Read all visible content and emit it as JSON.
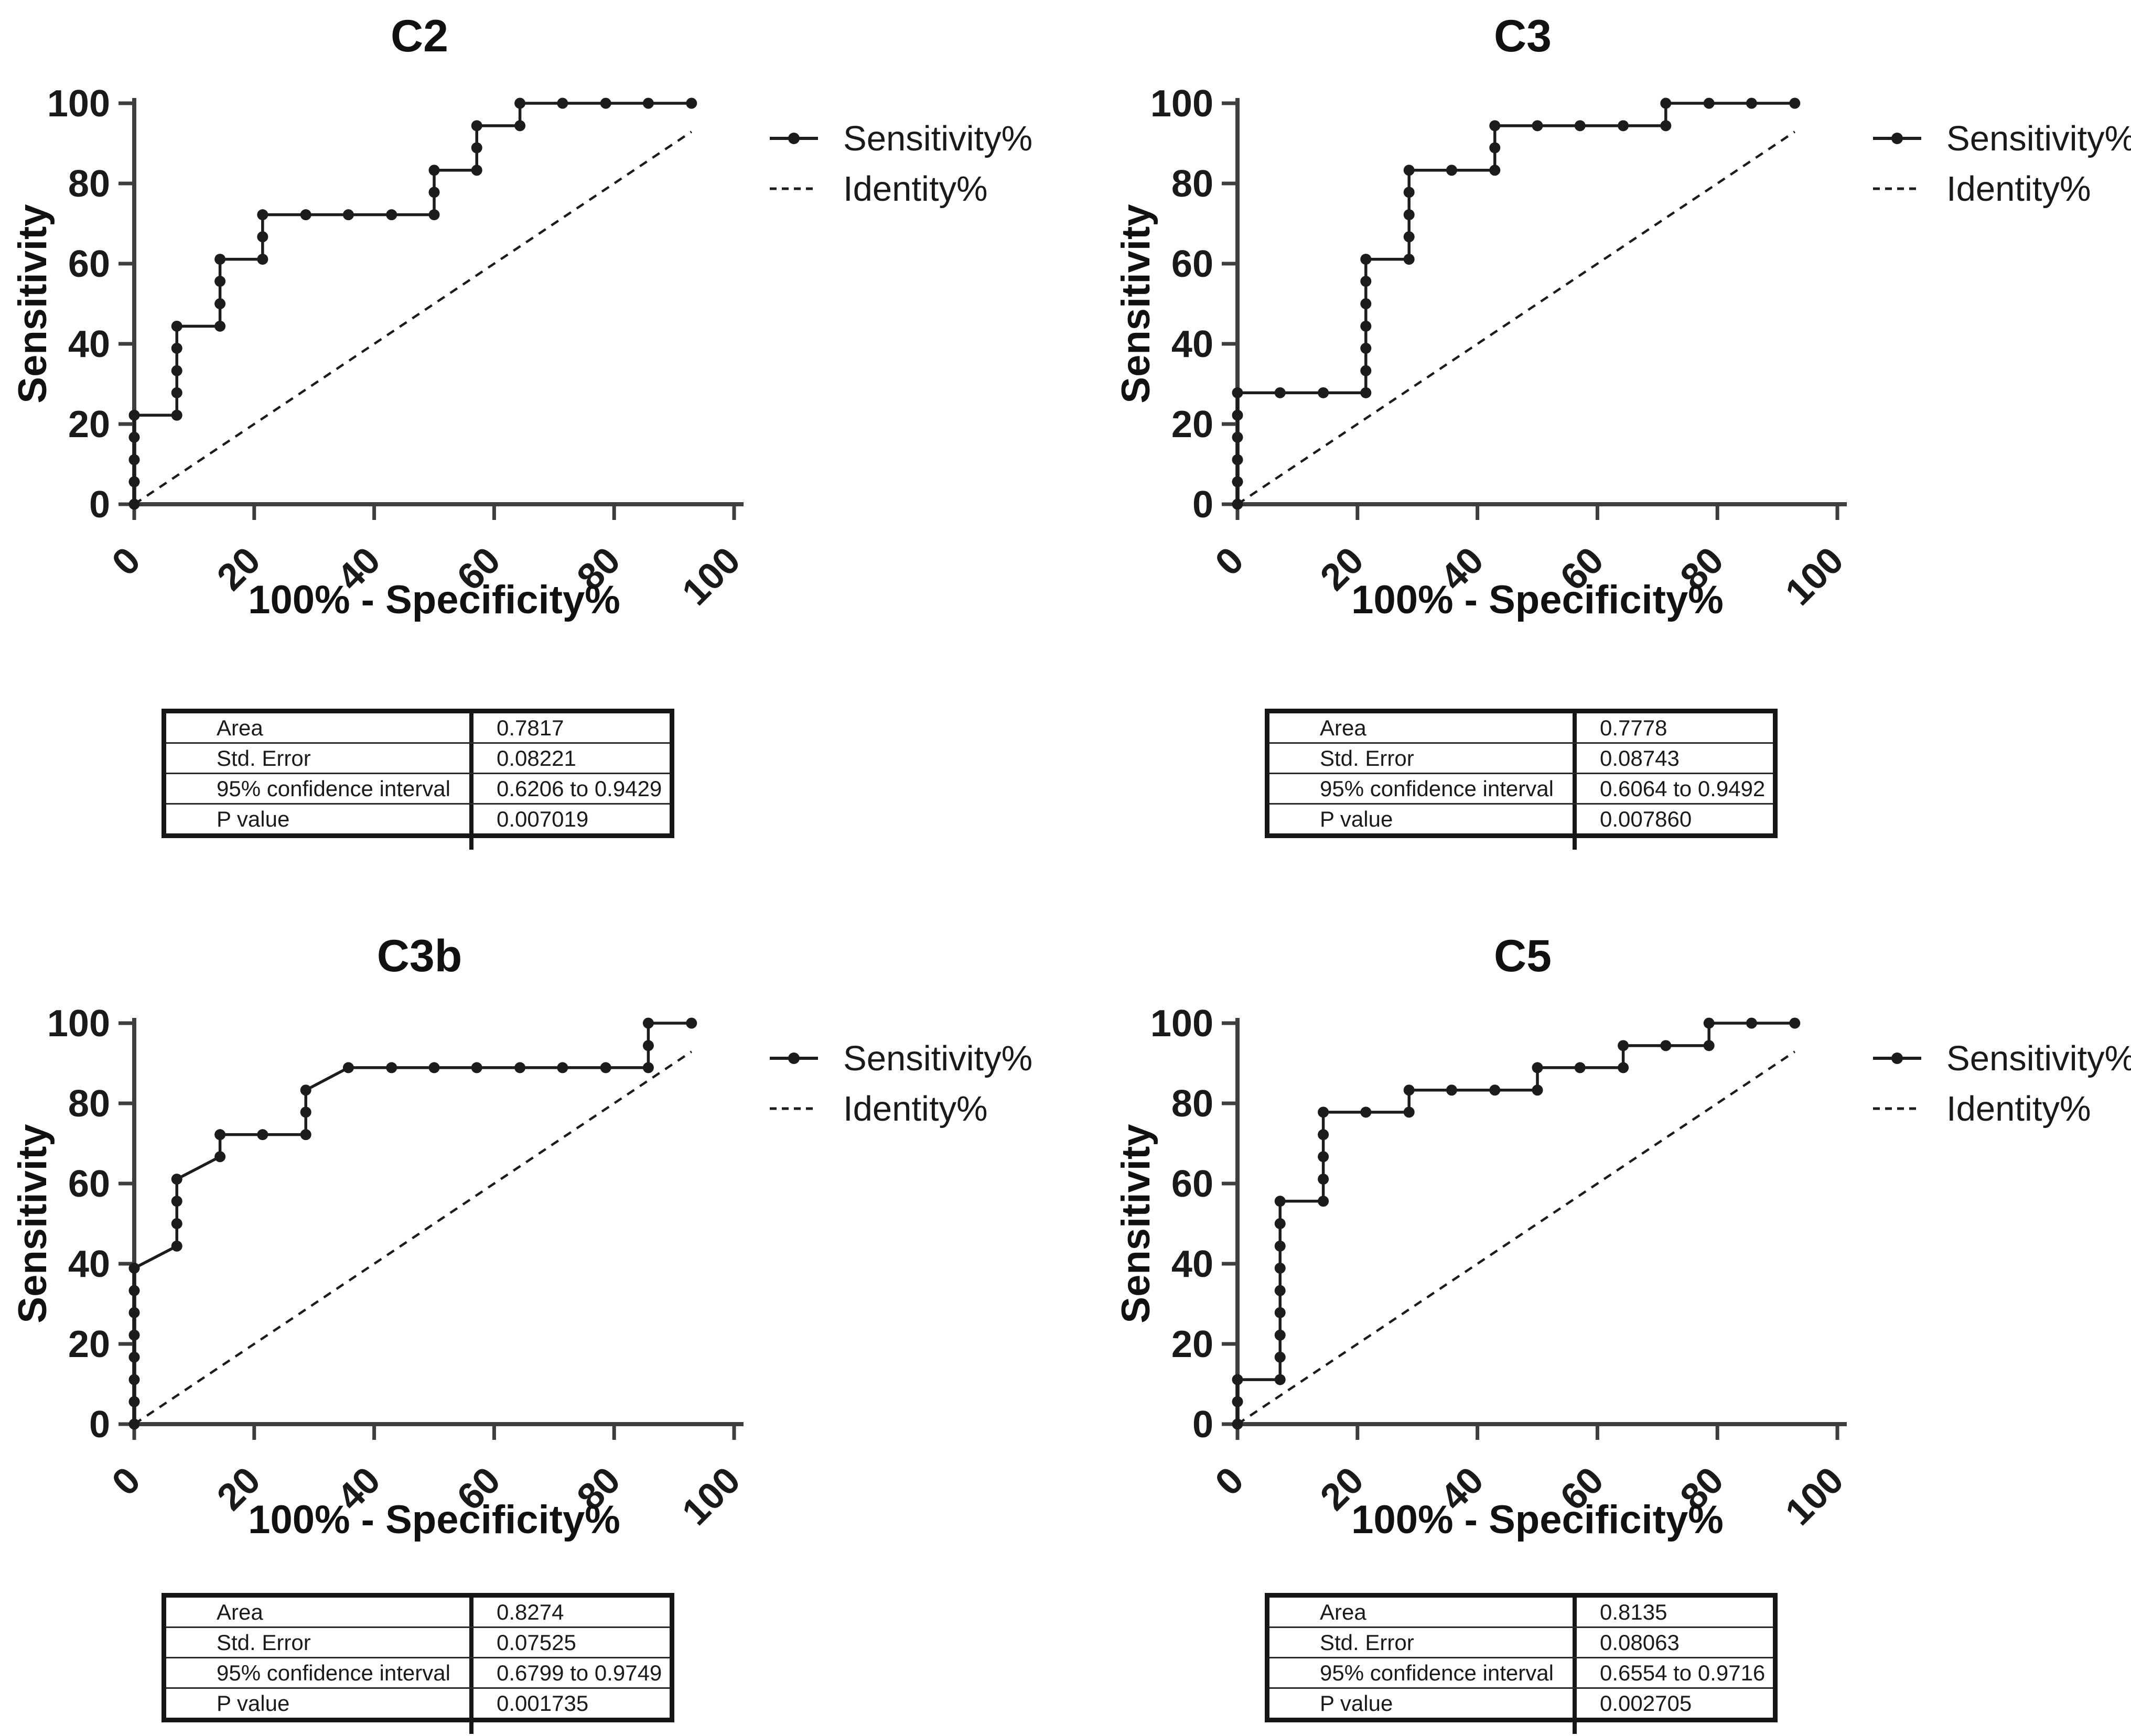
{
  "panels": [
    {
      "title": "C2",
      "legend": [
        "Sensitivity%",
        "Identity%"
      ],
      "stats": [
        {
          "label": "Area",
          "value": "0.7817"
        },
        {
          "label": "Std. Error",
          "value": "0.08221"
        },
        {
          "label": "95% confidence interval",
          "value": "0.6206 to 0.9429"
        },
        {
          "label": "P value",
          "value": "0.007019"
        }
      ]
    },
    {
      "title": "C3",
      "legend": [
        "Sensitivity%",
        "Identity%"
      ],
      "stats": [
        {
          "label": "Area",
          "value": "0.7778"
        },
        {
          "label": "Std. Error",
          "value": "0.08743"
        },
        {
          "label": "95% confidence interval",
          "value": "0.6064 to 0.9492"
        },
        {
          "label": "P value",
          "value": "0.007860"
        }
      ]
    },
    {
      "title": "C3b",
      "legend": [
        "Sensitivity%",
        "Identity%"
      ],
      "stats": [
        {
          "label": "Area",
          "value": "0.8274"
        },
        {
          "label": "Std. Error",
          "value": "0.07525"
        },
        {
          "label": "95% confidence interval",
          "value": "0.6799 to 0.9749"
        },
        {
          "label": "P value",
          "value": "0.001735"
        }
      ]
    },
    {
      "title": "C5",
      "legend": [
        "Sensitivity%",
        "Identity%"
      ],
      "stats": [
        {
          "label": "Area",
          "value": "0.8135"
        },
        {
          "label": "Std. Error",
          "value": "0.08063"
        },
        {
          "label": "95% confidence interval",
          "value": "0.6554 to 0.9716"
        },
        {
          "label": "P value",
          "value": "0.002705"
        }
      ]
    }
  ],
  "chart_data": [
    {
      "panel": "C2",
      "type": "line",
      "title": "C2",
      "xlabel": "100% - Specificity%",
      "ylabel": "Sensitivity",
      "xlim": [
        0,
        100
      ],
      "ylim": [
        0,
        100
      ],
      "xticks": [
        0,
        20,
        40,
        60,
        80,
        100
      ],
      "yticks": [
        0,
        20,
        40,
        60,
        80,
        100
      ],
      "grid": false,
      "legend_position": "right",
      "series": [
        {
          "name": "Sensitivity%",
          "style": "step_with_markers",
          "points": [
            [
              0,
              0
            ],
            [
              0,
              5.6
            ],
            [
              0,
              11.1
            ],
            [
              0,
              16.7
            ],
            [
              0,
              22.2
            ],
            [
              7.1,
              22.2
            ],
            [
              7.1,
              27.8
            ],
            [
              7.1,
              33.3
            ],
            [
              7.1,
              38.9
            ],
            [
              7.1,
              44.4
            ],
            [
              14.3,
              44.4
            ],
            [
              14.3,
              50
            ],
            [
              14.3,
              55.6
            ],
            [
              14.3,
              61.1
            ],
            [
              21.4,
              61.1
            ],
            [
              21.4,
              66.7
            ],
            [
              21.4,
              72.2
            ],
            [
              28.6,
              72.2
            ],
            [
              35.7,
              72.2
            ],
            [
              42.9,
              72.2
            ],
            [
              50,
              72.2
            ],
            [
              50,
              77.8
            ],
            [
              50,
              83.3
            ],
            [
              57.1,
              83.3
            ],
            [
              57.1,
              88.9
            ],
            [
              57.1,
              94.4
            ],
            [
              64.3,
              94.4
            ],
            [
              64.3,
              100
            ],
            [
              71.4,
              100
            ],
            [
              78.6,
              100
            ],
            [
              85.7,
              100
            ],
            [
              92.9,
              100
            ]
          ]
        },
        {
          "name": "Identity%",
          "style": "dashed_line",
          "points": [
            [
              0,
              0
            ],
            [
              92.9,
              92.9
            ]
          ]
        }
      ]
    },
    {
      "panel": "C3",
      "type": "line",
      "title": "C3",
      "xlabel": "100% - Specificity%",
      "ylabel": "Sensitivity",
      "xlim": [
        0,
        100
      ],
      "ylim": [
        0,
        100
      ],
      "xticks": [
        0,
        20,
        40,
        60,
        80,
        100
      ],
      "yticks": [
        0,
        20,
        40,
        60,
        80,
        100
      ],
      "grid": false,
      "legend_position": "right",
      "series": [
        {
          "name": "Sensitivity%",
          "style": "step_with_markers",
          "points": [
            [
              0,
              0
            ],
            [
              0,
              5.6
            ],
            [
              0,
              11.1
            ],
            [
              0,
              16.7
            ],
            [
              0,
              22.2
            ],
            [
              0,
              27.8
            ],
            [
              7.1,
              27.8
            ],
            [
              14.3,
              27.8
            ],
            [
              21.4,
              27.8
            ],
            [
              21.4,
              33.3
            ],
            [
              21.4,
              38.9
            ],
            [
              21.4,
              44.4
            ],
            [
              21.4,
              50
            ],
            [
              21.4,
              55.6
            ],
            [
              21.4,
              61.1
            ],
            [
              28.6,
              61.1
            ],
            [
              28.6,
              66.7
            ],
            [
              28.6,
              72.2
            ],
            [
              28.6,
              77.8
            ],
            [
              28.6,
              83.3
            ],
            [
              35.7,
              83.3
            ],
            [
              42.9,
              83.3
            ],
            [
              42.9,
              88.9
            ],
            [
              42.9,
              94.4
            ],
            [
              50,
              94.4
            ],
            [
              57.1,
              94.4
            ],
            [
              64.3,
              94.4
            ],
            [
              71.4,
              94.4
            ],
            [
              71.4,
              100
            ],
            [
              78.6,
              100
            ],
            [
              85.7,
              100
            ],
            [
              92.9,
              100
            ]
          ]
        },
        {
          "name": "Identity%",
          "style": "dashed_line",
          "points": [
            [
              0,
              0
            ],
            [
              92.9,
              92.9
            ]
          ]
        }
      ]
    },
    {
      "panel": "C3b",
      "type": "line",
      "title": "C3b",
      "xlabel": "100% - Specificity%",
      "ylabel": "Sensitivity",
      "xlim": [
        0,
        100
      ],
      "ylim": [
        0,
        100
      ],
      "xticks": [
        0,
        20,
        40,
        60,
        80,
        100
      ],
      "yticks": [
        0,
        20,
        40,
        60,
        80,
        100
      ],
      "grid": false,
      "legend_position": "right",
      "series": [
        {
          "name": "Sensitivity%",
          "style": "step_with_markers",
          "points": [
            [
              0,
              0
            ],
            [
              0,
              5.6
            ],
            [
              0,
              11.1
            ],
            [
              0,
              16.7
            ],
            [
              0,
              22.2
            ],
            [
              0,
              27.8
            ],
            [
              0,
              33.3
            ],
            [
              0,
              38.9
            ],
            [
              7.1,
              44.4
            ],
            [
              7.1,
              50
            ],
            [
              7.1,
              55.6
            ],
            [
              7.1,
              61.1
            ],
            [
              14.3,
              66.7
            ],
            [
              14.3,
              72.2
            ],
            [
              21.4,
              72.2
            ],
            [
              28.6,
              72.2
            ],
            [
              28.6,
              77.8
            ],
            [
              28.6,
              83.3
            ],
            [
              35.7,
              88.9
            ],
            [
              42.9,
              88.9
            ],
            [
              50,
              88.9
            ],
            [
              57.1,
              88.9
            ],
            [
              64.3,
              88.9
            ],
            [
              71.4,
              88.9
            ],
            [
              78.6,
              88.9
            ],
            [
              85.7,
              88.9
            ],
            [
              85.7,
              94.4
            ],
            [
              85.7,
              100
            ],
            [
              92.9,
              100
            ]
          ]
        },
        {
          "name": "Identity%",
          "style": "dashed_line",
          "points": [
            [
              0,
              0
            ],
            [
              92.9,
              92.9
            ]
          ]
        }
      ]
    },
    {
      "panel": "C5",
      "type": "line",
      "title": "C5",
      "xlabel": "100% - Specificity%",
      "ylabel": "Sensitivity",
      "xlim": [
        0,
        100
      ],
      "ylim": [
        0,
        100
      ],
      "xticks": [
        0,
        20,
        40,
        60,
        80,
        100
      ],
      "yticks": [
        0,
        20,
        40,
        60,
        80,
        100
      ],
      "grid": false,
      "legend_position": "right",
      "series": [
        {
          "name": "Sensitivity%",
          "style": "step_with_markers",
          "points": [
            [
              0,
              0
            ],
            [
              0,
              5.6
            ],
            [
              0,
              11.1
            ],
            [
              7.1,
              11.1
            ],
            [
              7.1,
              16.7
            ],
            [
              7.1,
              22.2
            ],
            [
              7.1,
              27.8
            ],
            [
              7.1,
              33.3
            ],
            [
              7.1,
              38.9
            ],
            [
              7.1,
              44.4
            ],
            [
              7.1,
              50
            ],
            [
              7.1,
              55.6
            ],
            [
              14.3,
              55.6
            ],
            [
              14.3,
              61.1
            ],
            [
              14.3,
              66.7
            ],
            [
              14.3,
              72.2
            ],
            [
              14.3,
              77.8
            ],
            [
              21.4,
              77.8
            ],
            [
              28.6,
              77.8
            ],
            [
              28.6,
              83.3
            ],
            [
              35.7,
              83.3
            ],
            [
              42.9,
              83.3
            ],
            [
              50,
              83.3
            ],
            [
              50,
              88.9
            ],
            [
              57.1,
              88.9
            ],
            [
              64.3,
              88.9
            ],
            [
              64.3,
              94.4
            ],
            [
              71.4,
              94.4
            ],
            [
              78.6,
              94.4
            ],
            [
              78.6,
              100
            ],
            [
              85.7,
              100
            ],
            [
              92.9,
              100
            ]
          ]
        },
        {
          "name": "Identity%",
          "style": "dashed_line",
          "points": [
            [
              0,
              0
            ],
            [
              92.9,
              92.9
            ]
          ]
        }
      ]
    }
  ]
}
